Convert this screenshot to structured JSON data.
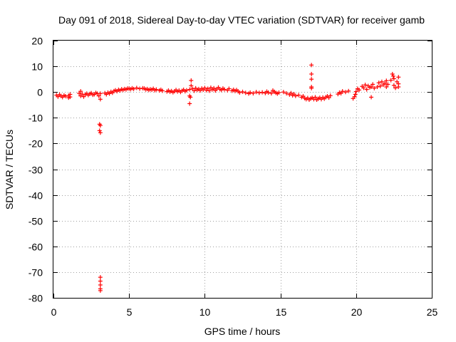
{
  "chart_data": {
    "type": "scatter",
    "title": "Day 091 of 2018, Sidereal Day-to-day VTEC variation (SDTVAR) for receiver gamb",
    "xlabel": "GPS time / hours",
    "ylabel": "SDTVAR / TECUs",
    "xlim": [
      0,
      25
    ],
    "ylim": [
      -80,
      20
    ],
    "xticks": [
      0,
      5,
      10,
      15,
      20,
      25
    ],
    "yticks": [
      20,
      10,
      0,
      -10,
      -20,
      -30,
      -40,
      -50,
      -60,
      -70,
      -80
    ],
    "grid": true,
    "marker": "+",
    "color": "#ff0000",
    "series": [
      {
        "name": "SDTVAR",
        "points": [
          [
            0.2,
            -1.2
          ],
          [
            0.3,
            -1.8
          ],
          [
            0.4,
            -1.0
          ],
          [
            0.5,
            -1.5
          ],
          [
            0.6,
            -2.0
          ],
          [
            0.7,
            -1.3
          ],
          [
            0.8,
            -1.6
          ],
          [
            1.0,
            -2.2
          ],
          [
            1.0,
            -1.4
          ],
          [
            1.1,
            -1.9
          ],
          [
            1.1,
            -0.9
          ],
          [
            1.7,
            -0.5
          ],
          [
            1.8,
            -1.5
          ],
          [
            1.8,
            0.3
          ],
          [
            1.9,
            -0.8
          ],
          [
            2.0,
            -1.8
          ],
          [
            2.1,
            -1.0
          ],
          [
            2.2,
            -0.6
          ],
          [
            2.3,
            -1.2
          ],
          [
            2.4,
            -0.7
          ],
          [
            2.5,
            -0.4
          ],
          [
            2.6,
            -1.1
          ],
          [
            2.7,
            -0.9
          ],
          [
            2.8,
            -0.3
          ],
          [
            2.9,
            -0.6
          ],
          [
            3.0,
            -1.5
          ],
          [
            3.1,
            -0.6
          ],
          [
            3.1,
            -2.8
          ],
          [
            3.05,
            -12.5
          ],
          [
            3.1,
            -13.0
          ],
          [
            3.05,
            -15.0
          ],
          [
            3.1,
            -15.8
          ],
          [
            3.1,
            -72
          ],
          [
            3.1,
            -73.5
          ],
          [
            3.1,
            -75
          ],
          [
            3.1,
            -76.5
          ],
          [
            3.1,
            -77.2
          ],
          [
            3.4,
            -0.4
          ],
          [
            3.5,
            -0.9
          ],
          [
            3.6,
            -0.2
          ],
          [
            3.7,
            -0.6
          ],
          [
            3.8,
            0.1
          ],
          [
            3.9,
            -0.3
          ],
          [
            4.0,
            0.4
          ],
          [
            4.1,
            0.7
          ],
          [
            4.2,
            0.3
          ],
          [
            4.3,
            0.9
          ],
          [
            4.4,
            0.6
          ],
          [
            4.5,
            1.1
          ],
          [
            4.6,
            0.8
          ],
          [
            4.7,
            1.2
          ],
          [
            4.8,
            1.0
          ],
          [
            4.9,
            1.4
          ],
          [
            5.0,
            1.3
          ],
          [
            5.1,
            1.1
          ],
          [
            5.2,
            1.5
          ],
          [
            5.3,
            1.2
          ],
          [
            5.5,
            1.6
          ],
          [
            5.7,
            1.3
          ],
          [
            5.9,
            1.5
          ],
          [
            6.0,
            1.4
          ],
          [
            6.1,
            1.0
          ],
          [
            6.2,
            1.2
          ],
          [
            6.3,
            0.8
          ],
          [
            6.4,
            1.1
          ],
          [
            6.5,
            0.9
          ],
          [
            6.6,
            1.3
          ],
          [
            6.7,
            0.7
          ],
          [
            6.8,
            1.0
          ],
          [
            7.0,
            0.6
          ],
          [
            7.1,
            0.9
          ],
          [
            7.2,
            0.5
          ],
          [
            7.5,
            0.2
          ],
          [
            7.6,
            0.6
          ],
          [
            7.7,
            0.1
          ],
          [
            7.8,
            0.4
          ],
          [
            7.9,
            -0.1
          ],
          [
            8.0,
            0.3
          ],
          [
            8.1,
            0.8
          ],
          [
            8.2,
            0.2
          ],
          [
            8.3,
            0.6
          ],
          [
            8.4,
            0.0
          ],
          [
            8.5,
            0.5
          ],
          [
            8.6,
            0.9
          ],
          [
            8.7,
            0.3
          ],
          [
            8.8,
            0.7
          ],
          [
            9.0,
            1.0
          ],
          [
            9.0,
            -1.5
          ],
          [
            9.05,
            -2.0
          ],
          [
            9.0,
            -4.5
          ],
          [
            9.1,
            2.5
          ],
          [
            9.1,
            4.5
          ],
          [
            9.2,
            1.3
          ],
          [
            9.3,
            0.5
          ],
          [
            9.4,
            1.5
          ],
          [
            9.5,
            0.8
          ],
          [
            9.6,
            1.2
          ],
          [
            9.7,
            0.6
          ],
          [
            9.8,
            1.4
          ],
          [
            9.9,
            0.9
          ],
          [
            10.0,
            1.6
          ],
          [
            10.1,
            0.7
          ],
          [
            10.2,
            1.3
          ],
          [
            10.3,
            0.5
          ],
          [
            10.4,
            1.7
          ],
          [
            10.5,
            1.0
          ],
          [
            10.6,
            1.5
          ],
          [
            10.7,
            0.6
          ],
          [
            10.8,
            1.2
          ],
          [
            10.9,
            1.8
          ],
          [
            11.0,
            1.1
          ],
          [
            11.1,
            0.8
          ],
          [
            11.2,
            1.4
          ],
          [
            11.3,
            1.0
          ],
          [
            11.5,
            0.7
          ],
          [
            11.6,
            1.3
          ],
          [
            11.8,
            0.5
          ],
          [
            11.9,
            0.9
          ],
          [
            12.0,
            0.4
          ],
          [
            12.1,
            0.8
          ],
          [
            12.2,
            0.3
          ],
          [
            12.3,
            -0.2
          ],
          [
            12.5,
            0.1
          ],
          [
            12.7,
            -0.3
          ],
          [
            12.9,
            -0.6
          ],
          [
            13.0,
            -0.2
          ],
          [
            13.2,
            -0.5
          ],
          [
            13.4,
            0.0
          ],
          [
            13.6,
            -0.3
          ],
          [
            13.8,
            -0.1
          ],
          [
            14.0,
            -0.4
          ],
          [
            14.1,
            0.2
          ],
          [
            14.2,
            -0.2
          ],
          [
            14.4,
            -0.5
          ],
          [
            14.5,
            0.6
          ],
          [
            14.6,
            0.1
          ],
          [
            14.7,
            -0.3
          ],
          [
            14.8,
            -0.6
          ],
          [
            14.9,
            -0.2
          ],
          [
            15.2,
            0.0
          ],
          [
            15.4,
            -0.5
          ],
          [
            15.6,
            -1.0
          ],
          [
            15.7,
            -0.4
          ],
          [
            15.8,
            -1.3
          ],
          [
            15.9,
            -0.8
          ],
          [
            16.0,
            -1.5
          ],
          [
            16.2,
            -1.2
          ],
          [
            16.4,
            -2.0
          ],
          [
            16.5,
            -1.6
          ],
          [
            16.6,
            -2.4
          ],
          [
            16.7,
            -2.8
          ],
          [
            16.8,
            -2.3
          ],
          [
            16.9,
            -3.0
          ],
          [
            17.0,
            -2.5
          ],
          [
            17.05,
            10.5
          ],
          [
            17.05,
            7.0
          ],
          [
            17.05,
            5.0
          ],
          [
            17.05,
            2.0
          ],
          [
            17.05,
            1.5
          ],
          [
            17.1,
            -2.2
          ],
          [
            17.2,
            -2.8
          ],
          [
            17.3,
            -2.0
          ],
          [
            17.4,
            -3.0
          ],
          [
            17.5,
            -2.6
          ],
          [
            17.6,
            -2.2
          ],
          [
            17.7,
            -2.8
          ],
          [
            17.8,
            -2.1
          ],
          [
            17.9,
            -2.6
          ],
          [
            18.0,
            -2.0
          ],
          [
            18.1,
            -1.6
          ],
          [
            18.2,
            -2.2
          ],
          [
            18.3,
            -1.4
          ],
          [
            18.8,
            -0.8
          ],
          [
            18.9,
            -0.2
          ],
          [
            19.0,
            -0.5
          ],
          [
            19.1,
            0.3
          ],
          [
            19.3,
            0.0
          ],
          [
            19.5,
            0.4
          ],
          [
            19.8,
            -2.5
          ],
          [
            19.9,
            -1.8
          ],
          [
            19.95,
            -0.9
          ],
          [
            20.0,
            0.2
          ],
          [
            20.1,
            1.3
          ],
          [
            20.2,
            0.8
          ],
          [
            20.4,
            2.2
          ],
          [
            20.5,
            1.6
          ],
          [
            20.6,
            2.8
          ],
          [
            20.7,
            1.0
          ],
          [
            20.8,
            2.4
          ],
          [
            20.9,
            1.8
          ],
          [
            21.0,
            2.0
          ],
          [
            21.0,
            -2.0
          ],
          [
            21.1,
            3.0
          ],
          [
            21.2,
            1.5
          ],
          [
            21.4,
            2.0
          ],
          [
            21.5,
            3.6
          ],
          [
            21.6,
            2.3
          ],
          [
            21.7,
            4.0
          ],
          [
            21.8,
            2.8
          ],
          [
            21.9,
            3.4
          ],
          [
            22.0,
            2.0
          ],
          [
            22.0,
            4.4
          ],
          [
            22.1,
            3.0
          ],
          [
            22.3,
            4.6
          ],
          [
            22.4,
            7.0
          ],
          [
            22.45,
            6.2
          ],
          [
            22.5,
            2.6
          ],
          [
            22.5,
            5.2
          ],
          [
            22.6,
            1.6
          ],
          [
            22.7,
            4.0
          ],
          [
            22.8,
            5.8
          ],
          [
            22.8,
            2.0
          ],
          [
            22.8,
            3.2
          ]
        ]
      }
    ]
  }
}
